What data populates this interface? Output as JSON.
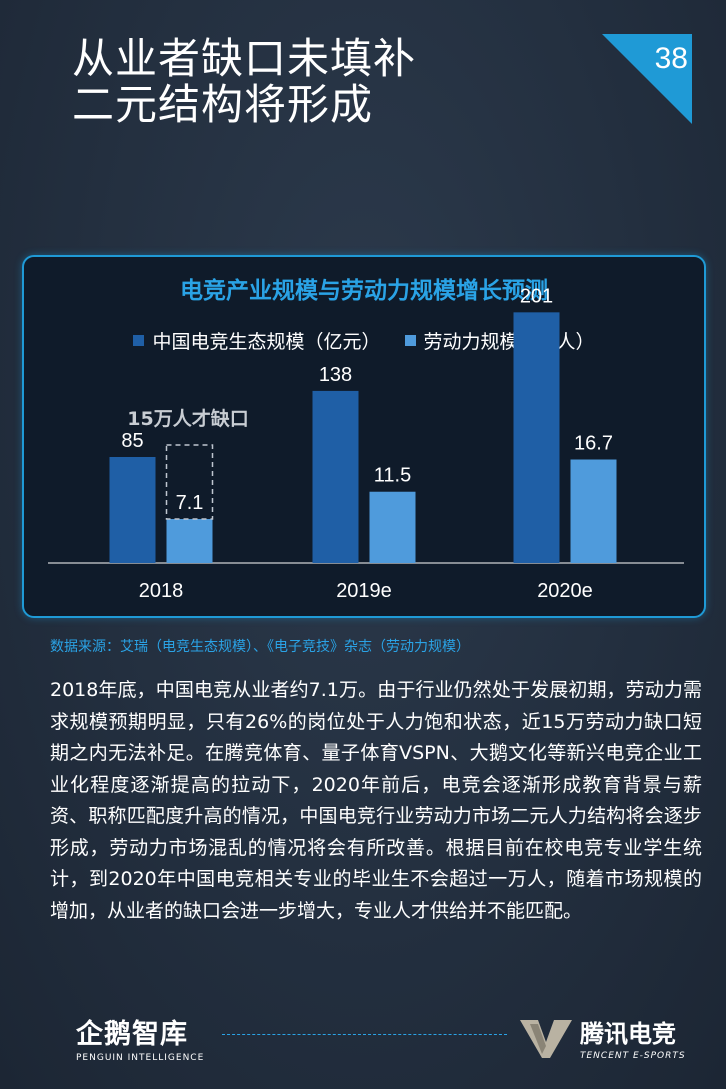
{
  "title_lines": [
    "从业者缺口未填补",
    "二元结构将形成"
  ],
  "page_number": "38",
  "accent_color": "#1f9ad6",
  "chart_data": {
    "type": "bar",
    "title": "电竞产业规模与劳动力规模增长预测",
    "categories": [
      "2018",
      "2019e",
      "2020e"
    ],
    "series": [
      {
        "name": "中国电竞生态规模（亿元）",
        "values": [
          85,
          138,
          201
        ],
        "color": "#1f5fa6"
      },
      {
        "name": "劳动力规模（万人）",
        "values": [
          7.1,
          11.5,
          16.7
        ],
        "color": "#4f9bdc"
      }
    ],
    "data_labels": [
      [
        "85",
        "138",
        "201"
      ],
      [
        "7.1",
        "11.5",
        "16.7"
      ]
    ],
    "annotation": "15万人才缺口",
    "grid": false,
    "legend_position": "top"
  },
  "source": "数据来源：艾瑞（电竞生态规模）、《电子竞技》杂志（劳动力规模）",
  "body_text": "2018年底，中国电竞从业者约7.1万。由于行业仍然处于发展初期，劳动力需求规模预期明显，只有26%的岗位处于人力饱和状态，近15万劳动力缺口短期之内无法补足。在腾竞体育、量子体育VSPN、大鹅文化等新兴电竞企业工业化程度逐渐提高的拉动下，2020年前后，电竞会逐渐形成教育背景与薪资、职称匹配度升高的情况，中国电竞行业劳动力市场二元人力结构将会逐步形成，劳动力市场混乱的情况将会有所改善。根据目前在校电竞专业学生统计，到2020年中国电竞相关专业的毕业生不会超过一万人，随着市场规模的增加，从业者的缺口会进一步增大，专业人才供给并不能匹配。",
  "footer": {
    "left_logo": "企鹅智库",
    "left_logo_en": "PENGUIN INTELLIGENCE",
    "right_logo": "腾讯电竞",
    "right_logo_en": "TENCENT E-SPORTS"
  }
}
